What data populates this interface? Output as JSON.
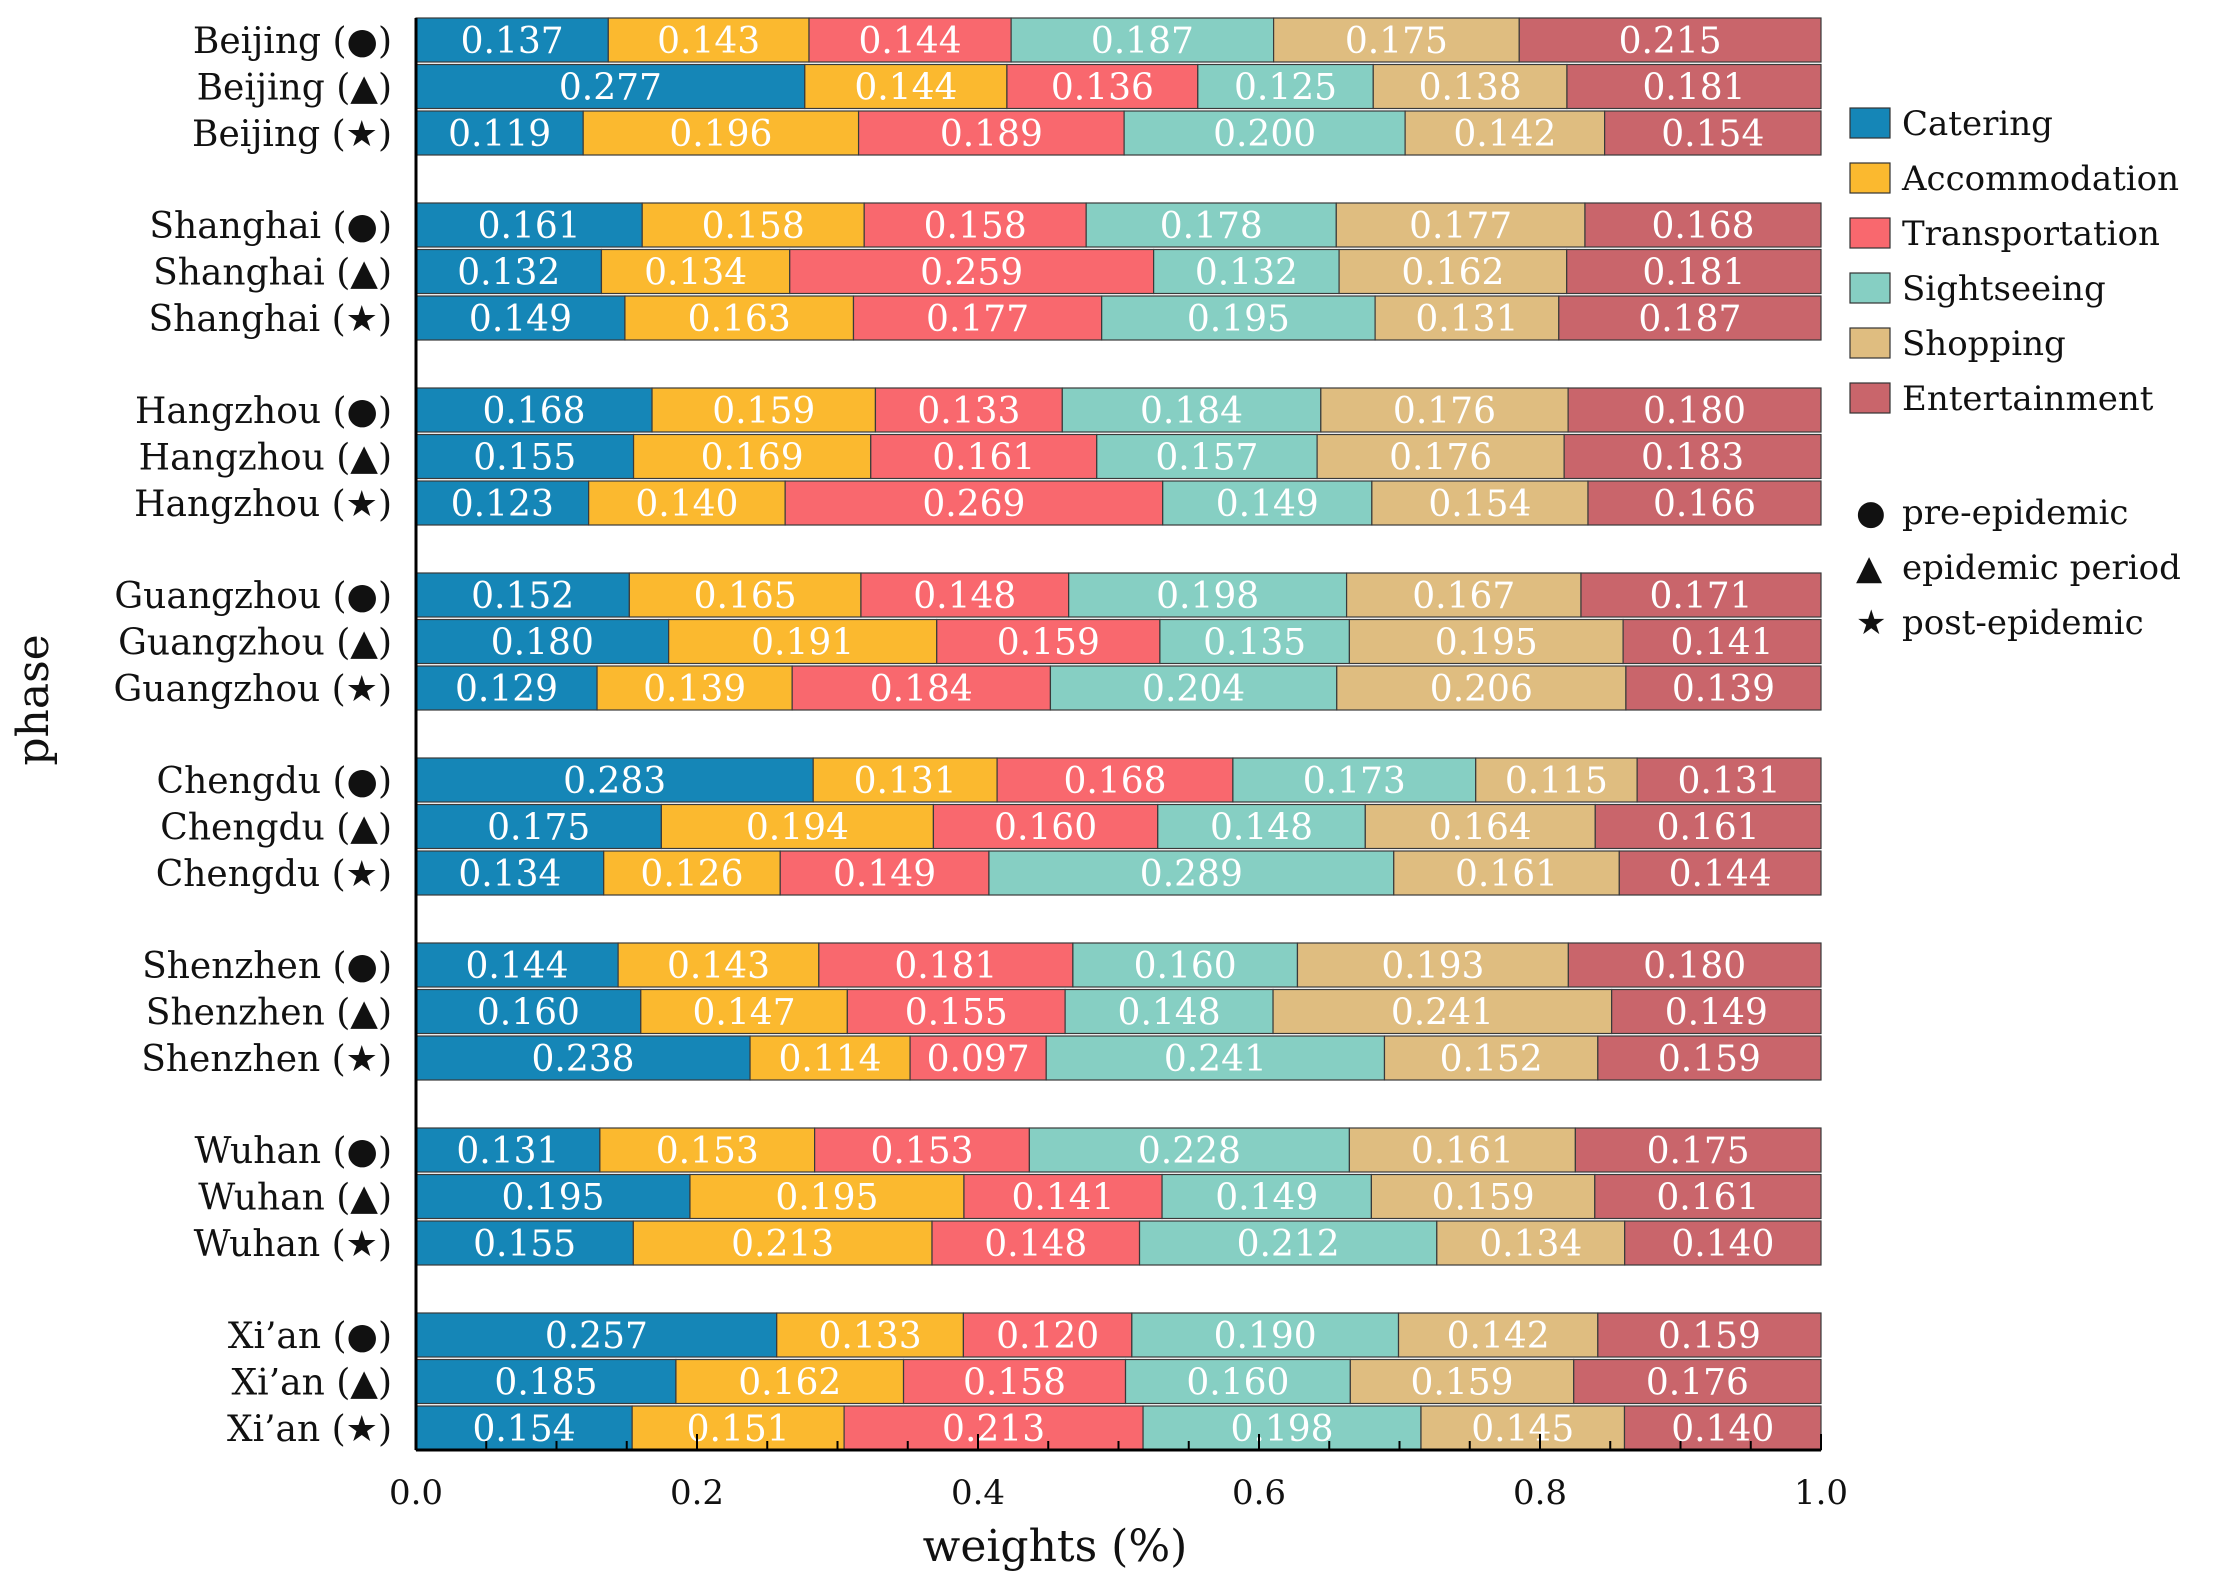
{
  "chart_data": {
    "type": "bar",
    "orientation": "horizontal",
    "stacked": true,
    "title": "",
    "xlabel": "weights (%)",
    "ylabel": "phase",
    "xlim": [
      0,
      1
    ],
    "xticks": [
      "0.0",
      "0.2",
      "0.4",
      "0.6",
      "0.8",
      "1.0"
    ],
    "grid": false,
    "legend_position": "right",
    "series_names": [
      "Catering",
      "Accommodation",
      "Transportation",
      "Sightseeing",
      "Shopping",
      "Entertainment"
    ],
    "series_colors": [
      "#1586b7",
      "#fbb92f",
      "#f9686e",
      "#86cfc3",
      "#dfbd80",
      "#c9656b"
    ],
    "phases": [
      {
        "symbol": "●",
        "name": "pre-epidemic"
      },
      {
        "symbol": "▲",
        "name": "epidemic period"
      },
      {
        "symbol": "★",
        "name": "post-epidemic"
      }
    ],
    "groups": [
      {
        "city": "Beijing",
        "rows": [
          {
            "symbol": "●",
            "values": [
              "0.137",
              "0.143",
              "0.144",
              "0.187",
              "0.175",
              "0.215"
            ]
          },
          {
            "symbol": "▲",
            "values": [
              "0.277",
              "0.144",
              "0.136",
              "0.125",
              "0.138",
              "0.181"
            ]
          },
          {
            "symbol": "★",
            "values": [
              "0.119",
              "0.196",
              "0.189",
              "0.200",
              "0.142",
              "0.154"
            ]
          }
        ]
      },
      {
        "city": "Shanghai",
        "rows": [
          {
            "symbol": "●",
            "values": [
              "0.161",
              "0.158",
              "0.158",
              "0.178",
              "0.177",
              "0.168"
            ]
          },
          {
            "symbol": "▲",
            "values": [
              "0.132",
              "0.134",
              "0.259",
              "0.132",
              "0.162",
              "0.181"
            ]
          },
          {
            "symbol": "★",
            "values": [
              "0.149",
              "0.163",
              "0.177",
              "0.195",
              "0.131",
              "0.187"
            ]
          }
        ]
      },
      {
        "city": "Hangzhou",
        "rows": [
          {
            "symbol": "●",
            "values": [
              "0.168",
              "0.159",
              "0.133",
              "0.184",
              "0.176",
              "0.180"
            ]
          },
          {
            "symbol": "▲",
            "values": [
              "0.155",
              "0.169",
              "0.161",
              "0.157",
              "0.176",
              "0.183"
            ]
          },
          {
            "symbol": "★",
            "values": [
              "0.123",
              "0.140",
              "0.269",
              "0.149",
              "0.154",
              "0.166"
            ]
          }
        ]
      },
      {
        "city": "Guangzhou",
        "rows": [
          {
            "symbol": "●",
            "values": [
              "0.152",
              "0.165",
              "0.148",
              "0.198",
              "0.167",
              "0.171"
            ]
          },
          {
            "symbol": "▲",
            "values": [
              "0.180",
              "0.191",
              "0.159",
              "0.135",
              "0.195",
              "0.141"
            ]
          },
          {
            "symbol": "★",
            "values": [
              "0.129",
              "0.139",
              "0.184",
              "0.204",
              "0.206",
              "0.139"
            ]
          }
        ]
      },
      {
        "city": "Chengdu",
        "rows": [
          {
            "symbol": "●",
            "values": [
              "0.283",
              "0.131",
              "0.168",
              "0.173",
              "0.115",
              "0.131"
            ]
          },
          {
            "symbol": "▲",
            "values": [
              "0.175",
              "0.194",
              "0.160",
              "0.148",
              "0.164",
              "0.161"
            ]
          },
          {
            "symbol": "★",
            "values": [
              "0.134",
              "0.126",
              "0.149",
              "0.289",
              "0.161",
              "0.144"
            ]
          }
        ]
      },
      {
        "city": "Shenzhen",
        "rows": [
          {
            "symbol": "●",
            "values": [
              "0.144",
              "0.143",
              "0.181",
              "0.160",
              "0.193",
              "0.180"
            ]
          },
          {
            "symbol": "▲",
            "values": [
              "0.160",
              "0.147",
              "0.155",
              "0.148",
              "0.241",
              "0.149"
            ]
          },
          {
            "symbol": "★",
            "values": [
              "0.238",
              "0.114",
              "0.097",
              "0.241",
              "0.152",
              "0.159"
            ]
          }
        ]
      },
      {
        "city": "Wuhan",
        "rows": [
          {
            "symbol": "●",
            "values": [
              "0.131",
              "0.153",
              "0.153",
              "0.228",
              "0.161",
              "0.175"
            ]
          },
          {
            "symbol": "▲",
            "values": [
              "0.195",
              "0.195",
              "0.141",
              "0.149",
              "0.159",
              "0.161"
            ]
          },
          {
            "symbol": "★",
            "values": [
              "0.155",
              "0.213",
              "0.148",
              "0.212",
              "0.134",
              "0.140"
            ]
          }
        ]
      },
      {
        "city": "Xi’an",
        "rows": [
          {
            "symbol": "●",
            "values": [
              "0.257",
              "0.133",
              "0.120",
              "0.190",
              "0.142",
              "0.159"
            ]
          },
          {
            "symbol": "▲",
            "values": [
              "0.185",
              "0.162",
              "0.158",
              "0.160",
              "0.159",
              "0.176"
            ]
          },
          {
            "symbol": "★",
            "values": [
              "0.154",
              "0.151",
              "0.213",
              "0.198",
              "0.145",
              "0.140"
            ]
          }
        ]
      }
    ]
  }
}
